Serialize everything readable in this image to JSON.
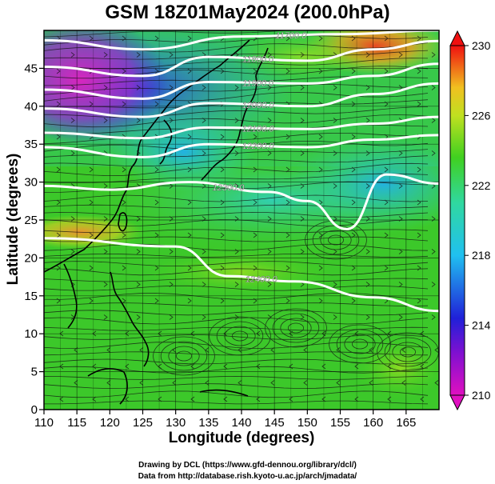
{
  "title": "GSM 18Z01May2024 (200.0hPa)",
  "x_axis": {
    "label": "Longitude (degrees)",
    "range": [
      110,
      170
    ],
    "ticks": [
      "110",
      "115",
      "120",
      "125",
      "130",
      "135",
      "140",
      "145",
      "150",
      "155",
      "160",
      "165"
    ]
  },
  "y_axis": {
    "label": "Latitude  (degrees)",
    "range": [
      0,
      50
    ],
    "ticks": [
      "0",
      "5",
      "10",
      "15",
      "20",
      "25",
      "30",
      "35",
      "40",
      "45"
    ]
  },
  "colorbar": {
    "range": [
      210,
      230
    ],
    "ticks": [
      "210",
      "214",
      "218",
      "222",
      "226",
      "230"
    ],
    "colors": [
      "#e010c0",
      "#3010d0",
      "#20c8f0",
      "#40d020",
      "#f0e020",
      "#f01010"
    ]
  },
  "contours": [
    {
      "label": "11700.0",
      "lat_at_lon": [
        [
          110,
          48.7
        ],
        [
          125,
          47.5
        ],
        [
          140,
          49.2
        ],
        [
          155,
          49.5
        ],
        [
          170,
          50.0
        ]
      ]
    },
    {
      "label": "11800.0",
      "lat_at_lon": [
        [
          110,
          45.2
        ],
        [
          125,
          44.0
        ],
        [
          135,
          46.5
        ],
        [
          150,
          46.0
        ],
        [
          160,
          47.5
        ],
        [
          170,
          48.6
        ]
      ]
    },
    {
      "label": "11900.0",
      "lat_at_lon": [
        [
          110,
          42.2
        ],
        [
          125,
          41.0
        ],
        [
          135,
          43.2
        ],
        [
          150,
          43.0
        ],
        [
          160,
          44.0
        ],
        [
          170,
          45.6
        ]
      ]
    },
    {
      "label": "12000.0",
      "lat_at_lon": [
        [
          110,
          39.7
        ],
        [
          125,
          38.6
        ],
        [
          135,
          40.4
        ],
        [
          150,
          40.0
        ],
        [
          160,
          41.6
        ],
        [
          170,
          43.0
        ]
      ]
    },
    {
      "label": "12100.0",
      "lat_at_lon": [
        [
          110,
          36.5
        ],
        [
          125,
          35.8
        ],
        [
          135,
          37.2
        ],
        [
          150,
          37.0
        ],
        [
          160,
          37.7
        ],
        [
          170,
          38.6
        ]
      ]
    },
    {
      "label": "12200.0",
      "lat_at_lon": [
        [
          110,
          34.6
        ],
        [
          125,
          33.3
        ],
        [
          135,
          35.0
        ],
        [
          150,
          34.6
        ],
        [
          160,
          35.6
        ],
        [
          170,
          36.2
        ]
      ]
    },
    {
      "label": "12300.0",
      "lat_at_lon": [
        [
          110,
          29.5
        ],
        [
          120,
          29.0
        ],
        [
          132,
          30.0
        ],
        [
          144,
          28.7
        ],
        [
          150,
          27.5
        ],
        [
          156,
          23.8
        ],
        [
          162,
          31.0
        ],
        [
          170,
          29.8
        ]
      ]
    },
    {
      "label": "12400.0",
      "lat_at_lon": [
        [
          110,
          22.6
        ],
        [
          130,
          21.5
        ],
        [
          138,
          17.6
        ],
        [
          148,
          16.9
        ],
        [
          160,
          14.8
        ],
        [
          170,
          13.0
        ]
      ]
    }
  ],
  "credits": {
    "line1": "Drawing by DCL (https://www.gfd-dennou.org/library/dcl/)",
    "line2": "Data from http://database.rish.kyoto-u.ac.jp/arch/jmadata/"
  }
}
